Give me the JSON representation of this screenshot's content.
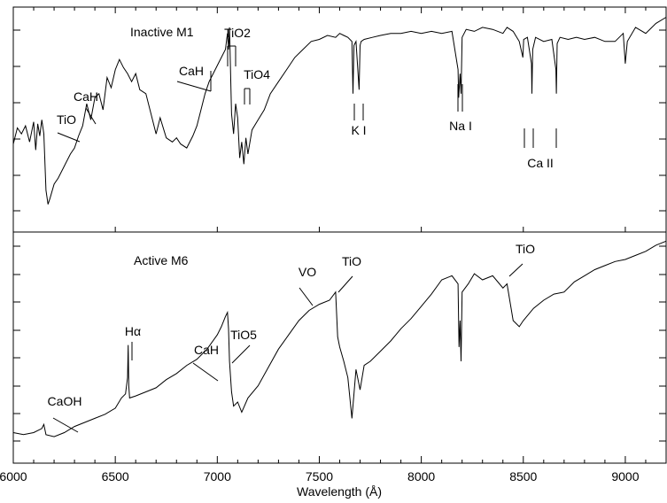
{
  "chart_data": {
    "type": "line",
    "xlabel": "Wavelength (Å)",
    "xlim": [
      6000,
      9200
    ],
    "xticks": [
      {
        "value": 6000,
        "label": "6000"
      },
      {
        "value": 6500,
        "label": "6500"
      },
      {
        "value": 7000,
        "label": "7000"
      },
      {
        "value": 7500,
        "label": "7500"
      },
      {
        "value": 8000,
        "label": "8000"
      },
      {
        "value": 8500,
        "label": "8500"
      },
      {
        "value": 9000,
        "label": "9000"
      }
    ],
    "panels": [
      {
        "id": "top",
        "title": "Inactive M1",
        "ylim": [
          0,
          1
        ],
        "series": [
          {
            "x": [
              6000,
              6020,
              6040,
              6060,
              6080,
              6100,
              6110,
              6120,
              6130,
              6140,
              6150,
              6160,
              6170,
              6180,
              6200,
              6220,
              6250,
              6280,
              6300,
              6320,
              6340,
              6360,
              6380,
              6400,
              6420,
              6440,
              6460,
              6480,
              6500,
              6520,
              6540,
              6560,
              6580,
              6600,
              6620,
              6650,
              6680,
              6700,
              6720,
              6750,
              6780,
              6800,
              6820,
              6850,
              6880,
              6900,
              6920,
              6940,
              6960,
              6980,
              7000,
              7020,
              7040,
              7050,
              7055,
              7060,
              7070,
              7080,
              7090,
              7100,
              7110,
              7120,
              7130,
              7140,
              7150,
              7170,
              7200,
              7230,
              7260,
              7300,
              7340,
              7380,
              7420,
              7460,
              7500,
              7540,
              7580,
              7600,
              7620,
              7640,
              7660,
              7665,
              7670,
              7680,
              7695,
              7700,
              7705,
              7720,
              7760,
              7800,
              7850,
              7900,
              7950,
              8000,
              8050,
              8100,
              8150,
              8180,
              8183,
              8190,
              8195,
              8200,
              8220,
              8260,
              8300,
              8350,
              8400,
              8420,
              8450,
              8480,
              8498,
              8502,
              8520,
              8540,
              8542,
              8546,
              8560,
              8600,
              8640,
              8660,
              8662,
              8666,
              8680,
              8720,
              8760,
              8800,
              8850,
              8900,
              8950,
              8990,
              9000,
              9010,
              9050,
              9100,
              9150,
              9200
            ],
            "values": [
              0.35,
              0.43,
              0.4,
              0.44,
              0.36,
              0.46,
              0.32,
              0.45,
              0.39,
              0.47,
              0.4,
              0.12,
              0.05,
              0.08,
              0.15,
              0.18,
              0.24,
              0.3,
              0.33,
              0.39,
              0.44,
              0.55,
              0.47,
              0.58,
              0.6,
              0.52,
              0.68,
              0.63,
              0.72,
              0.77,
              0.73,
              0.7,
              0.66,
              0.7,
              0.62,
              0.6,
              0.48,
              0.4,
              0.48,
              0.38,
              0.36,
              0.38,
              0.35,
              0.33,
              0.39,
              0.44,
              0.52,
              0.6,
              0.66,
              0.7,
              0.74,
              0.78,
              0.82,
              0.9,
              0.82,
              0.93,
              0.5,
              0.4,
              0.55,
              0.48,
              0.28,
              0.36,
              0.25,
              0.38,
              0.3,
              0.42,
              0.47,
              0.52,
              0.6,
              0.66,
              0.72,
              0.78,
              0.82,
              0.86,
              0.87,
              0.89,
              0.88,
              0.9,
              0.89,
              0.88,
              0.86,
              0.6,
              0.84,
              0.86,
              0.62,
              0.84,
              0.86,
              0.87,
              0.88,
              0.89,
              0.9,
              0.9,
              0.91,
              0.9,
              0.91,
              0.9,
              0.91,
              0.72,
              0.58,
              0.7,
              0.6,
              0.88,
              0.92,
              0.91,
              0.93,
              0.92,
              0.9,
              0.93,
              0.91,
              0.86,
              0.78,
              0.87,
              0.88,
              0.75,
              0.6,
              0.82,
              0.88,
              0.86,
              0.87,
              0.72,
              0.6,
              0.85,
              0.88,
              0.87,
              0.88,
              0.87,
              0.88,
              0.86,
              0.86,
              0.9,
              0.75,
              0.86,
              0.93,
              0.9,
              0.95,
              0.98
            ]
          }
        ],
        "annotations": [
          {
            "text": "TiO",
            "x": 6300
          },
          {
            "text": "CaH",
            "x": 6380
          },
          {
            "text": "CaH",
            "x": 6975
          },
          {
            "text": "TiO2",
            "x": 7060
          },
          {
            "text": "TiO4",
            "x": 7140
          },
          {
            "text": "K I",
            "x": 7682
          },
          {
            "text": "Na I",
            "x": 8190
          },
          {
            "text": "Ca II",
            "x": 8580
          }
        ]
      },
      {
        "id": "bottom",
        "title": "Active M6",
        "ylim": [
          0,
          1
        ],
        "series": [
          {
            "x": [
              6000,
              6050,
              6100,
              6140,
              6150,
              6160,
              6200,
              6250,
              6300,
              6350,
              6400,
              6450,
              6500,
              6530,
              6550,
              6560,
              6563,
              6566,
              6570,
              6600,
              6650,
              6700,
              6750,
              6800,
              6850,
              6900,
              6950,
              7000,
              7020,
              7040,
              7050,
              7055,
              7060,
              7070,
              7080,
              7100,
              7120,
              7150,
              7200,
              7250,
              7300,
              7350,
              7400,
              7450,
              7500,
              7550,
              7580,
              7590,
              7600,
              7620,
              7640,
              7660,
              7680,
              7700,
              7720,
              7750,
              7800,
              7850,
              7900,
              7950,
              8000,
              8050,
              8100,
              8150,
              8180,
              8185,
              8190,
              8195,
              8200,
              8230,
              8260,
              8300,
              8350,
              8400,
              8420,
              8450,
              8480,
              8500,
              8550,
              8600,
              8650,
              8700,
              8750,
              8800,
              8850,
              8900,
              8950,
              9000,
              9050,
              9100,
              9150,
              9200
            ],
            "values": [
              0.05,
              0.04,
              0.05,
              0.07,
              0.09,
              0.04,
              0.03,
              0.05,
              0.08,
              0.1,
              0.12,
              0.14,
              0.17,
              0.22,
              0.24,
              0.32,
              0.48,
              0.28,
              0.22,
              0.23,
              0.25,
              0.27,
              0.31,
              0.34,
              0.38,
              0.41,
              0.46,
              0.53,
              0.57,
              0.62,
              0.64,
              0.56,
              0.4,
              0.25,
              0.18,
              0.2,
              0.15,
              0.22,
              0.28,
              0.37,
              0.46,
              0.53,
              0.6,
              0.65,
              0.68,
              0.7,
              0.74,
              0.52,
              0.47,
              0.4,
              0.32,
              0.12,
              0.36,
              0.26,
              0.38,
              0.4,
              0.45,
              0.5,
              0.56,
              0.61,
              0.67,
              0.73,
              0.8,
              0.82,
              0.78,
              0.47,
              0.6,
              0.4,
              0.74,
              0.78,
              0.83,
              0.8,
              0.82,
              0.76,
              0.78,
              0.6,
              0.57,
              0.6,
              0.66,
              0.7,
              0.73,
              0.74,
              0.79,
              0.82,
              0.85,
              0.87,
              0.89,
              0.9,
              0.92,
              0.94,
              0.97,
              0.99
            ]
          }
        ],
        "annotations": [
          {
            "text": "CaOH",
            "x": 6300
          },
          {
            "text": "Hα",
            "x": 6563
          },
          {
            "text": "CaH",
            "x": 6995
          },
          {
            "text": "TiO5",
            "x": 7060
          },
          {
            "text": "VO",
            "x": 7460
          },
          {
            "text": "TiO",
            "x": 7590
          },
          {
            "text": "TiO",
            "x": 8420
          }
        ]
      }
    ]
  }
}
